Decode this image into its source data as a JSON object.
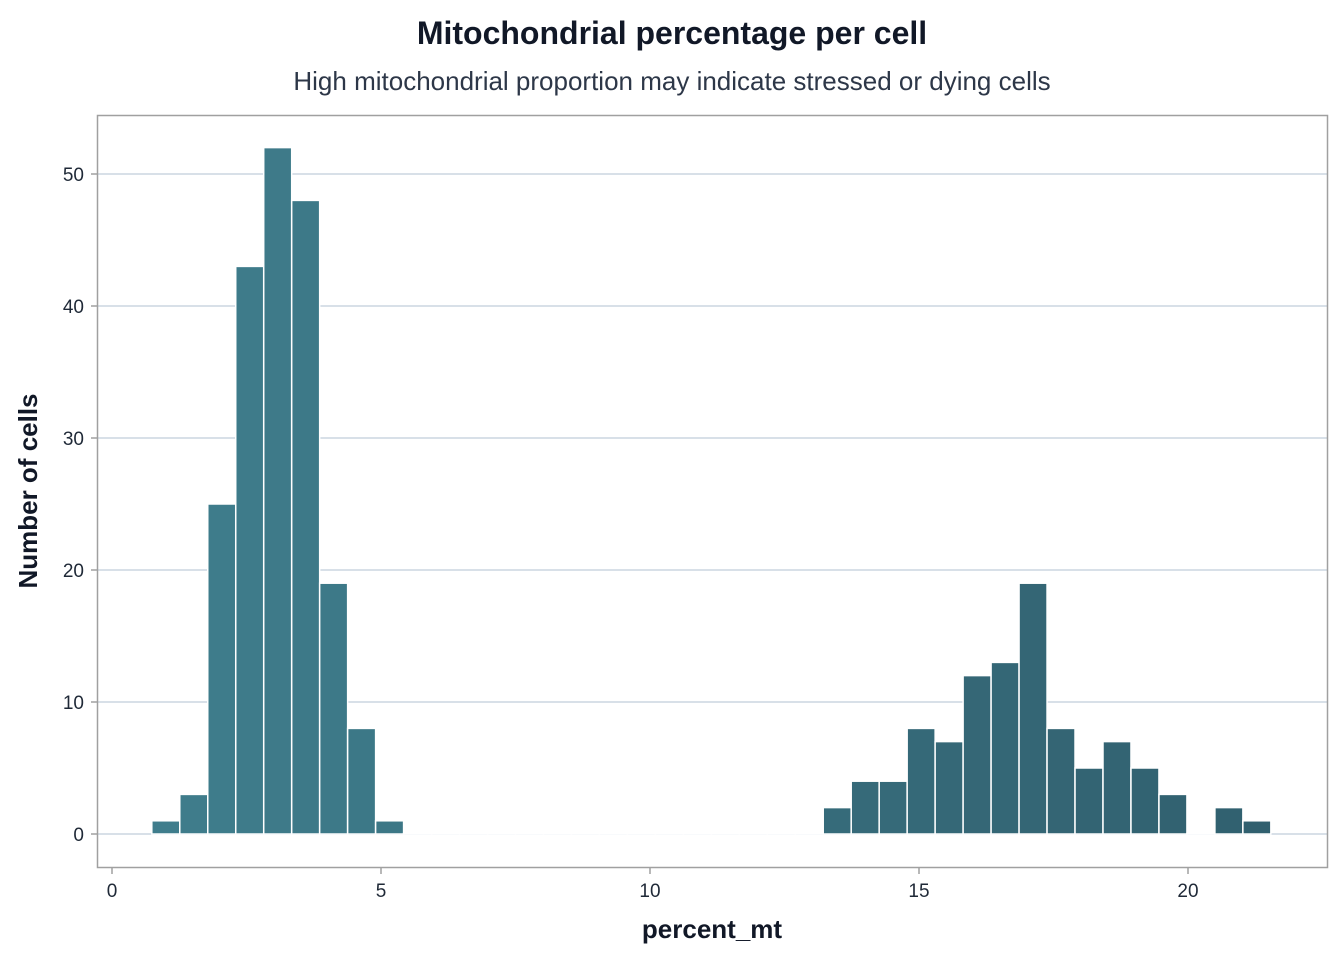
{
  "chart_data": {
    "type": "bar",
    "subtype": "histogram",
    "title": "Mitochondrial percentage per cell",
    "subtitle": "High mitochondrial proportion may indicate stressed or dying cells",
    "xlabel": "percent_mt",
    "ylabel": "Number of cells",
    "xlim": [
      -0.2,
      22.6
    ],
    "ylim": [
      -2.5,
      54.5
    ],
    "x_ticks": [
      0,
      5,
      10,
      15,
      20
    ],
    "y_ticks": [
      0,
      10,
      20,
      30,
      40,
      50
    ],
    "grid": "horizontal",
    "bin_start": 0.74,
    "bin_width": 0.52,
    "counts": [
      1,
      3,
      25,
      43,
      52,
      48,
      19,
      8,
      1,
      0,
      0,
      0,
      0,
      0,
      0,
      0,
      0,
      0,
      0,
      0,
      0,
      0,
      0,
      0,
      2,
      4,
      4,
      8,
      7,
      12,
      13,
      19,
      8,
      5,
      7,
      5,
      3,
      0,
      2,
      1
    ],
    "colors": {
      "fill_low": "#3f7d8c",
      "fill_high": "#31606f",
      "grid": "#cbd5e1",
      "frame": "#a0a0a0"
    }
  }
}
